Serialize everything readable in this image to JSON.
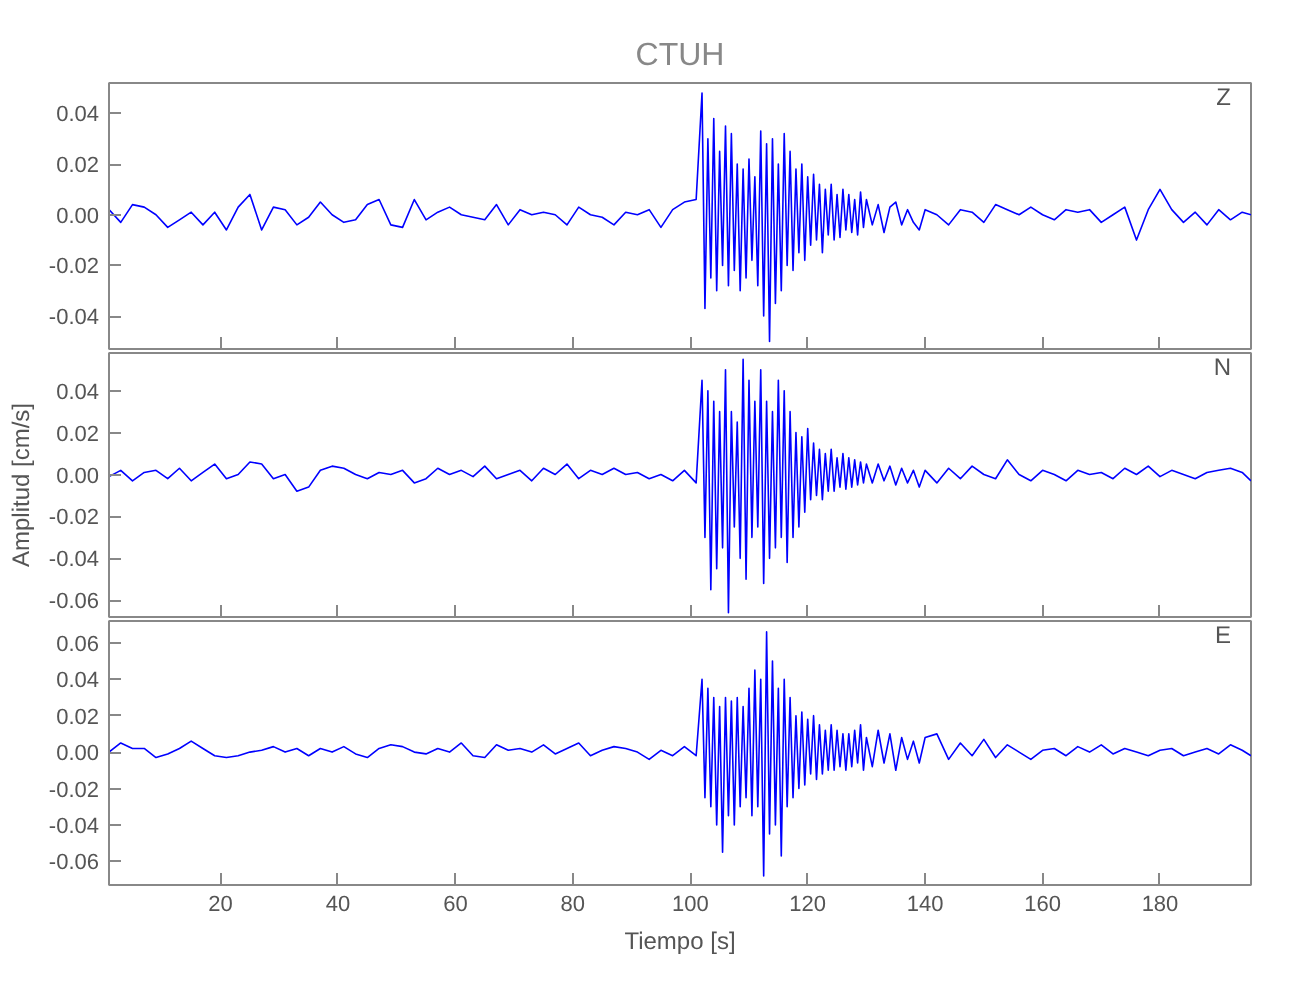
{
  "chart_data": [
    {
      "type": "line",
      "title": "CTUH",
      "annotations": [
        "Z"
      ],
      "tick_labels": "y",
      "grid": false,
      "line_style": "solid",
      "xlim": [
        1,
        195.5
      ],
      "xticks": [
        20,
        40,
        60,
        80,
        100,
        120,
        140,
        160,
        180
      ],
      "ylim": [
        -0.053,
        0.052
      ],
      "yticks": [
        {
          "value": -0.04,
          "label": "-0.04"
        },
        {
          "value": -0.02,
          "label": "-0.02"
        },
        {
          "value": 0,
          "label": "0.00"
        },
        {
          "value": 0.02,
          "label": "0.02"
        },
        {
          "value": 0.04,
          "label": "0.04"
        }
      ],
      "x": [
        1,
        3,
        5,
        7,
        9,
        11,
        13,
        15,
        17,
        19,
        21,
        23,
        25,
        27,
        29,
        31,
        33,
        35,
        37,
        39,
        41,
        43,
        45,
        47,
        49,
        51,
        53,
        55,
        57,
        59,
        61,
        63,
        65,
        67,
        69,
        71,
        73,
        75,
        77,
        79,
        81,
        83,
        85,
        87,
        89,
        91,
        93,
        95,
        97,
        99,
        101,
        102,
        102.5,
        103,
        103.5,
        104,
        104.5,
        105,
        105.5,
        106,
        106.5,
        107,
        107.5,
        108,
        108.5,
        109,
        109.5,
        110,
        110.5,
        111,
        111.5,
        112,
        112.5,
        113,
        113.5,
        114,
        114.5,
        115,
        115.5,
        116,
        116.5,
        117,
        117.5,
        118,
        118.5,
        119,
        119.5,
        120,
        120.5,
        121,
        121.5,
        122,
        122.5,
        123,
        123.5,
        124,
        124.5,
        125,
        125.5,
        126,
        126.5,
        127,
        127.5,
        128,
        128.5,
        129,
        129.5,
        130,
        131,
        132,
        133,
        134,
        135,
        136,
        137,
        138,
        139,
        140,
        142,
        144,
        146,
        148,
        150,
        152,
        154,
        156,
        158,
        160,
        162,
        164,
        166,
        168,
        170,
        172,
        174,
        176,
        178,
        180,
        182,
        184,
        186,
        188,
        190,
        192,
        194,
        195.5
      ],
      "series": [
        {
          "color": "#0000ff",
          "values": [
            0.002,
            -0.003,
            0.004,
            0.003,
            0.0,
            -0.005,
            -0.002,
            0.001,
            -0.004,
            0.001,
            -0.006,
            0.003,
            0.008,
            -0.006,
            0.003,
            0.002,
            -0.004,
            -0.001,
            0.005,
            0.0,
            -0.003,
            -0.002,
            0.004,
            0.006,
            -0.004,
            -0.005,
            0.006,
            -0.002,
            0.001,
            0.003,
            0.0,
            -0.001,
            -0.002,
            0.004,
            -0.004,
            0.002,
            0.0,
            0.001,
            0.0,
            -0.004,
            0.003,
            0.0,
            -0.001,
            -0.004,
            0.001,
            0.0,
            0.002,
            -0.005,
            0.002,
            0.005,
            0.006,
            0.048,
            -0.037,
            0.03,
            -0.025,
            0.038,
            -0.03,
            0.025,
            -0.02,
            0.035,
            -0.028,
            0.032,
            -0.022,
            0.02,
            -0.03,
            0.018,
            -0.025,
            0.022,
            -0.018,
            0.015,
            -0.028,
            0.033,
            -0.04,
            0.028,
            -0.05,
            0.03,
            -0.035,
            0.02,
            -0.03,
            0.032,
            -0.02,
            0.025,
            -0.022,
            0.018,
            -0.015,
            0.02,
            -0.018,
            0.015,
            -0.012,
            0.016,
            -0.01,
            0.012,
            -0.015,
            0.01,
            -0.008,
            0.012,
            -0.01,
            0.008,
            -0.009,
            0.01,
            -0.006,
            0.008,
            -0.007,
            0.006,
            -0.008,
            0.009,
            -0.005,
            0.006,
            -0.004,
            0.004,
            -0.007,
            0.003,
            0.005,
            -0.004,
            0.002,
            -0.003,
            -0.006,
            0.002,
            0.0,
            -0.004,
            0.002,
            0.001,
            -0.003,
            0.004,
            0.002,
            0.0,
            0.003,
            0.0,
            -0.002,
            0.002,
            0.001,
            0.002,
            -0.003,
            0.0,
            0.003,
            -0.01,
            0.002,
            0.01,
            0.002,
            -0.003,
            0.001,
            -0.004,
            0.002,
            -0.002,
            0.001,
            0.0
          ]
        }
      ]
    },
    {
      "type": "line",
      "ylabel": "Amplitud [cm/s]",
      "annotations": [
        "N"
      ],
      "tick_labels": "y",
      "grid": false,
      "line_style": "solid",
      "xlim": [
        1,
        195.5
      ],
      "xticks": [
        20,
        40,
        60,
        80,
        100,
        120,
        140,
        160,
        180
      ],
      "ylim": [
        -0.068,
        0.058
      ],
      "yticks": [
        {
          "value": -0.06,
          "label": "-0.06"
        },
        {
          "value": -0.04,
          "label": "-0.04"
        },
        {
          "value": -0.02,
          "label": "-0.02"
        },
        {
          "value": 0,
          "label": "0.00"
        },
        {
          "value": 0.02,
          "label": "0.02"
        },
        {
          "value": 0.04,
          "label": "0.04"
        }
      ],
      "x": [
        1,
        3,
        5,
        7,
        9,
        11,
        13,
        15,
        17,
        19,
        21,
        23,
        25,
        27,
        29,
        31,
        33,
        35,
        37,
        39,
        41,
        43,
        45,
        47,
        49,
        51,
        53,
        55,
        57,
        59,
        61,
        63,
        65,
        67,
        69,
        71,
        73,
        75,
        77,
        79,
        81,
        83,
        85,
        87,
        89,
        91,
        93,
        95,
        97,
        99,
        101,
        102,
        102.5,
        103,
        103.5,
        104,
        104.5,
        105,
        105.5,
        106,
        106.5,
        107,
        107.5,
        108,
        108.5,
        109,
        109.5,
        110,
        110.5,
        111,
        111.5,
        112,
        112.5,
        113,
        113.5,
        114,
        114.5,
        115,
        115.5,
        116,
        116.5,
        117,
        117.5,
        118,
        118.5,
        119,
        119.5,
        120,
        120.5,
        121,
        121.5,
        122,
        122.5,
        123,
        123.5,
        124,
        124.5,
        125,
        125.5,
        126,
        126.5,
        127,
        127.5,
        128,
        128.5,
        129,
        129.5,
        130,
        131,
        132,
        133,
        134,
        135,
        136,
        137,
        138,
        139,
        140,
        142,
        144,
        146,
        148,
        150,
        152,
        154,
        156,
        158,
        160,
        162,
        164,
        166,
        168,
        170,
        172,
        174,
        176,
        178,
        180,
        182,
        184,
        186,
        188,
        190,
        192,
        194,
        195.5
      ],
      "series": [
        {
          "color": "#0000ff",
          "values": [
            -0.001,
            0.002,
            -0.003,
            0.001,
            0.002,
            -0.002,
            0.003,
            -0.003,
            0.001,
            0.005,
            -0.002,
            0.0,
            0.006,
            0.005,
            -0.002,
            0.0,
            -0.008,
            -0.006,
            0.002,
            0.004,
            0.003,
            0.0,
            -0.002,
            0.001,
            0.0,
            0.002,
            -0.004,
            -0.002,
            0.003,
            0.0,
            0.002,
            -0.001,
            0.004,
            -0.002,
            0.0,
            0.002,
            -0.003,
            0.003,
            0.0,
            0.005,
            -0.002,
            0.002,
            0.0,
            0.003,
            0.0,
            0.001,
            -0.002,
            0.0,
            -0.003,
            0.002,
            -0.004,
            0.045,
            -0.03,
            0.04,
            -0.055,
            0.035,
            -0.045,
            0.03,
            -0.035,
            0.05,
            -0.066,
            0.03,
            -0.025,
            0.025,
            -0.04,
            0.055,
            -0.05,
            0.045,
            -0.03,
            0.035,
            -0.025,
            0.05,
            -0.052,
            0.035,
            -0.04,
            0.03,
            -0.035,
            0.045,
            -0.03,
            0.04,
            -0.042,
            0.03,
            -0.03,
            0.02,
            -0.025,
            0.018,
            -0.018,
            0.022,
            -0.012,
            0.015,
            -0.01,
            0.012,
            -0.012,
            0.01,
            -0.008,
            0.012,
            -0.008,
            0.008,
            -0.006,
            0.01,
            -0.007,
            0.008,
            -0.006,
            0.007,
            -0.005,
            0.006,
            -0.004,
            0.005,
            -0.004,
            0.005,
            -0.003,
            0.004,
            -0.005,
            0.003,
            -0.004,
            0.002,
            -0.006,
            0.002,
            -0.004,
            0.003,
            -0.002,
            0.004,
            0.0,
            -0.002,
            0.007,
            0.0,
            -0.003,
            0.002,
            0.0,
            -0.003,
            0.002,
            0.0,
            0.001,
            -0.002,
            0.003,
            0.0,
            0.004,
            -0.001,
            0.002,
            0.0,
            -0.002,
            0.001,
            0.002,
            0.003,
            0.001,
            -0.003
          ]
        }
      ]
    },
    {
      "type": "line",
      "xlabel": "Tiempo [s]",
      "annotations": [
        "E"
      ],
      "grid": false,
      "line_style": "solid",
      "xlim": [
        1,
        195.5
      ],
      "xticks": [
        20,
        40,
        60,
        80,
        100,
        120,
        140,
        160,
        180
      ],
      "ylim": [
        -0.073,
        0.072
      ],
      "yticks": [
        {
          "value": -0.06,
          "label": "-0.06"
        },
        {
          "value": -0.04,
          "label": "-0.04"
        },
        {
          "value": -0.02,
          "label": "-0.02"
        },
        {
          "value": 0,
          "label": "0.00"
        },
        {
          "value": 0.02,
          "label": "0.02"
        },
        {
          "value": 0.04,
          "label": "0.04"
        },
        {
          "value": 0.06,
          "label": "0.06"
        }
      ],
      "x": [
        1,
        3,
        5,
        7,
        9,
        11,
        13,
        15,
        17,
        19,
        21,
        23,
        25,
        27,
        29,
        31,
        33,
        35,
        37,
        39,
        41,
        43,
        45,
        47,
        49,
        51,
        53,
        55,
        57,
        59,
        61,
        63,
        65,
        67,
        69,
        71,
        73,
        75,
        77,
        79,
        81,
        83,
        85,
        87,
        89,
        91,
        93,
        95,
        97,
        99,
        101,
        102,
        102.5,
        103,
        103.5,
        104,
        104.5,
        105,
        105.5,
        106,
        106.5,
        107,
        107.5,
        108,
        108.5,
        109,
        109.5,
        110,
        110.5,
        111,
        111.5,
        112,
        112.5,
        113,
        113.5,
        114,
        114.5,
        115,
        115.5,
        116,
        116.5,
        117,
        117.5,
        118,
        118.5,
        119,
        119.5,
        120,
        120.5,
        121,
        121.5,
        122,
        122.5,
        123,
        123.5,
        124,
        124.5,
        125,
        125.5,
        126,
        126.5,
        127,
        127.5,
        128,
        128.5,
        129,
        129.5,
        130,
        131,
        132,
        133,
        134,
        135,
        136,
        137,
        138,
        139,
        140,
        142,
        144,
        146,
        148,
        150,
        152,
        154,
        156,
        158,
        160,
        162,
        164,
        166,
        168,
        170,
        172,
        174,
        176,
        178,
        180,
        182,
        184,
        186,
        188,
        190,
        192,
        194,
        195.5
      ],
      "series": [
        {
          "color": "#0000ff",
          "values": [
            0.0,
            0.005,
            0.002,
            0.002,
            -0.003,
            -0.001,
            0.002,
            0.006,
            0.002,
            -0.002,
            -0.003,
            -0.002,
            0.0,
            0.001,
            0.003,
            0.0,
            0.002,
            -0.002,
            0.002,
            0.0,
            0.003,
            -0.001,
            -0.003,
            0.002,
            0.004,
            0.003,
            0.0,
            -0.001,
            0.002,
            0.0,
            0.005,
            -0.002,
            -0.003,
            0.004,
            0.001,
            0.002,
            0.0,
            0.004,
            -0.001,
            0.002,
            0.005,
            -0.002,
            0.001,
            0.003,
            0.002,
            0.0,
            -0.004,
            0.001,
            -0.002,
            0.003,
            -0.002,
            0.04,
            -0.025,
            0.035,
            -0.03,
            0.03,
            -0.04,
            0.025,
            -0.055,
            0.03,
            -0.035,
            0.028,
            -0.04,
            0.03,
            -0.03,
            0.025,
            -0.025,
            0.035,
            -0.035,
            0.045,
            -0.03,
            0.04,
            -0.068,
            0.066,
            -0.045,
            0.05,
            -0.04,
            0.035,
            -0.057,
            0.04,
            -0.03,
            0.03,
            -0.025,
            0.02,
            -0.02,
            0.022,
            -0.018,
            0.018,
            -0.012,
            0.02,
            -0.015,
            0.015,
            -0.012,
            0.012,
            -0.01,
            0.015,
            -0.01,
            0.012,
            -0.008,
            0.01,
            -0.01,
            0.01,
            -0.008,
            0.012,
            -0.006,
            0.015,
            -0.01,
            0.008,
            -0.008,
            0.012,
            -0.006,
            0.01,
            -0.01,
            0.008,
            -0.004,
            0.006,
            -0.006,
            0.008,
            0.01,
            -0.004,
            0.005,
            -0.002,
            0.007,
            -0.003,
            0.004,
            0.0,
            -0.004,
            0.001,
            0.002,
            -0.002,
            0.003,
            0.0,
            0.004,
            -0.001,
            0.002,
            0.0,
            -0.002,
            0.001,
            0.002,
            -0.002,
            0.0,
            0.002,
            -0.001,
            0.004,
            0.001,
            -0.002
          ]
        }
      ]
    }
  ]
}
